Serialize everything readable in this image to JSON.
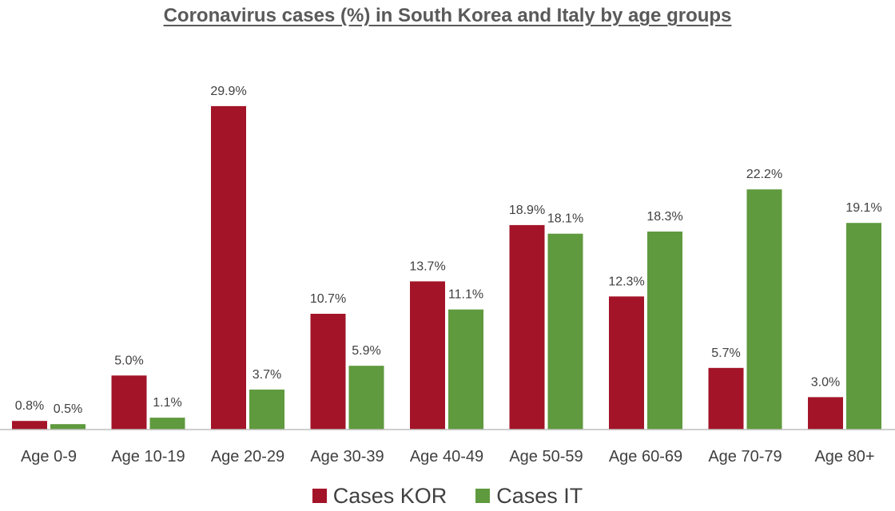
{
  "chart_data": {
    "type": "bar",
    "title": "Coronavirus cases (%) in South Korea and Italy by age groups",
    "xlabel": "",
    "ylabel": "",
    "ylim": [
      0,
      32
    ],
    "grid": false,
    "legend_position": "bottom",
    "categories": [
      "Age 0-9",
      "Age 10-19",
      "Age 20-29",
      "Age 30-39",
      "Age 40-49",
      "Age 50-59",
      "Age 60-69",
      "Age 70-79",
      "Age 80+"
    ],
    "series": [
      {
        "name": "Cases KOR",
        "color": "#A31428",
        "values": [
          0.8,
          5.0,
          29.9,
          10.7,
          13.7,
          18.9,
          12.3,
          5.7,
          3.0
        ],
        "labels": [
          "0.8%",
          "5.0%",
          "29.9%",
          "10.7%",
          "13.7%",
          "18.9%",
          "12.3%",
          "5.7%",
          "3.0%"
        ]
      },
      {
        "name": "Cases IT",
        "color": "#5F9A3E",
        "values": [
          0.5,
          1.1,
          3.7,
          5.9,
          11.1,
          18.1,
          18.3,
          22.2,
          19.1
        ],
        "labels": [
          "0.5%",
          "1.1%",
          "3.7%",
          "5.9%",
          "11.1%",
          "18.1%",
          "18.3%",
          "22.2%",
          "19.1%"
        ]
      }
    ]
  }
}
